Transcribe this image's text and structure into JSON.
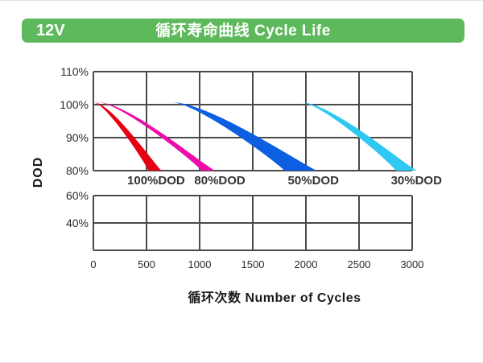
{
  "header": {
    "model": "12V",
    "title": "循环寿命曲线 Cycle Life",
    "bg_color": "#5eb95c",
    "text_color": "#ffffff"
  },
  "colors": {
    "grid": "#4a4a4a",
    "tick_text": "#2b2b2b"
  },
  "chart_data": {
    "type": "area",
    "title": "循环寿命曲线 Cycle Life",
    "xlabel": "循环次数 Number of Cycles",
    "ylabel": "DOD",
    "grid": true,
    "x_range": [
      0,
      3000
    ],
    "x_ticks": [
      0,
      500,
      1000,
      1500,
      2000,
      2500,
      3000
    ],
    "y_axis": {
      "upper_panel_tick_labels": [
        "110%",
        "100%",
        "90%",
        "80%"
      ],
      "upper_panel_tick_values": [
        110,
        100,
        90,
        80
      ],
      "upper_panel_range": [
        80,
        110
      ],
      "lower_panel_tick_labels": [
        "60%",
        "40%"
      ],
      "lower_panel_tick_values": [
        60,
        40
      ],
      "lower_panel_range": [
        20,
        60
      ]
    },
    "series": [
      {
        "label": "100%DOD",
        "color": "#e60012",
        "start_dod_pct": 100,
        "tail_cycles": 0,
        "cycles_at_80pct_min": 520,
        "cycles_at_80pct_max": 640,
        "label_cycles": 590
      },
      {
        "label": "80%DOD",
        "color": "#ee0ca8",
        "start_dod_pct": 100,
        "tail_cycles": 40,
        "cycles_at_80pct_min": 1020,
        "cycles_at_80pct_max": 1140,
        "label_cycles": 1190
      },
      {
        "label": "50%DOD",
        "color": "#0c5fe0",
        "start_dod_pct": 100,
        "tail_cycles": 735,
        "cycles_at_80pct_min": 1800,
        "cycles_at_80pct_max": 2100,
        "label_cycles": 2070
      },
      {
        "label": "30%DOD",
        "color": "#2fc8f2",
        "start_dod_pct": 100,
        "tail_cycles": 1950,
        "cycles_at_80pct_min": 2850,
        "cycles_at_80pct_max": 3040,
        "label_cycles": 3040
      }
    ]
  }
}
